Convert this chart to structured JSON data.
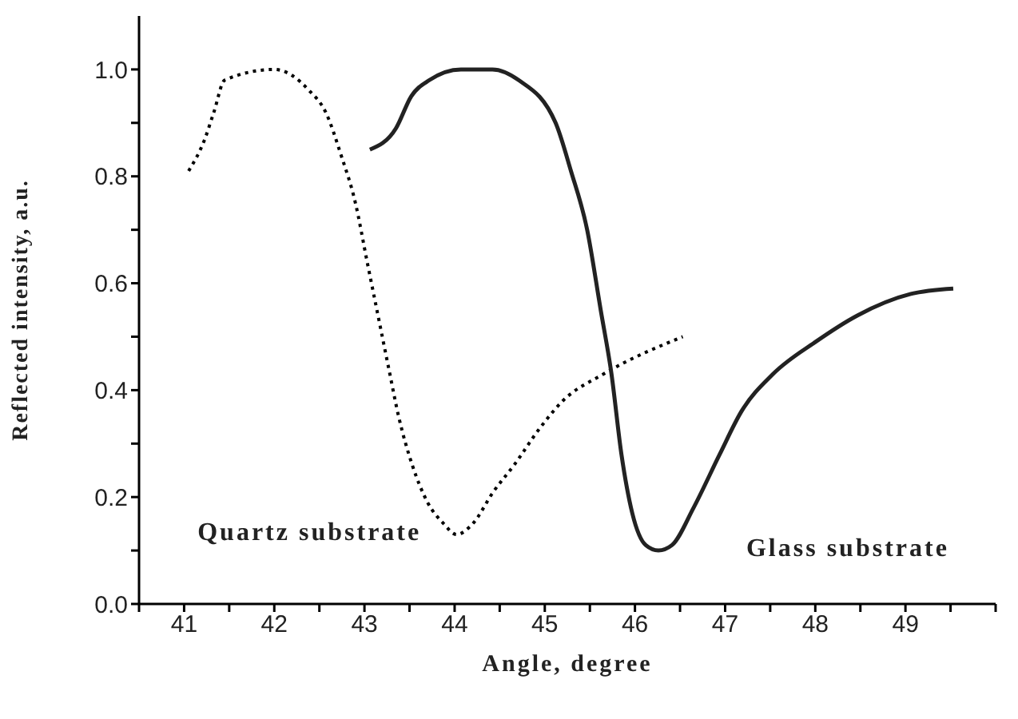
{
  "chart_data": {
    "type": "line",
    "xlabel": "Angle, degree",
    "ylabel": "Reflected intensity, a.u.",
    "xlim": [
      40.5,
      50
    ],
    "xticks": [
      {
        "value": 40.5,
        "label": null
      },
      41,
      {
        "value": 41.5,
        "label": null
      },
      42,
      {
        "value": 42.5,
        "label": null
      },
      43,
      {
        "value": 43.5,
        "label": null
      },
      44,
      {
        "value": 44.5,
        "label": null
      },
      45,
      {
        "value": 45.5,
        "label": null
      },
      46,
      {
        "value": 46.5,
        "label": null
      },
      47,
      {
        "value": 47.5,
        "label": null
      },
      48,
      {
        "value": 48.5,
        "label": null
      },
      49,
      {
        "value": 49.5,
        "label": null
      },
      {
        "value": 50,
        "label": null
      }
    ],
    "ylim": [
      0,
      1.1
    ],
    "yticks": [
      {
        "value": 0,
        "label": "0.0"
      },
      {
        "value": 0.1,
        "label": null
      },
      {
        "value": 0.2,
        "label": "0.2"
      },
      {
        "value": 0.3,
        "label": null
      },
      {
        "value": 0.4,
        "label": "0.4"
      },
      {
        "value": 0.5,
        "label": null
      },
      {
        "value": 0.6,
        "label": "0.6"
      },
      {
        "value": 0.7,
        "label": null
      },
      {
        "value": 0.8,
        "label": "0.8"
      },
      {
        "value": 0.9,
        "label": null
      },
      {
        "value": 1.0,
        "label": "1.0"
      }
    ],
    "grid": false,
    "legend": false,
    "marker": "none",
    "series": [
      {
        "name": "Quartz substrate",
        "color": "#000000",
        "line_style": "dotted",
        "x": [
          41.05,
          41.23,
          41.33,
          41.45,
          42.0,
          42.39,
          42.57,
          42.74,
          42.9,
          43.03,
          43.15,
          43.27,
          43.38,
          43.53,
          43.7,
          43.88,
          44.02,
          44.2,
          44.43,
          44.66,
          44.95,
          45.2,
          45.65,
          46.53
        ],
        "values": [
          0.81,
          0.87,
          0.92,
          0.98,
          1.0,
          0.96,
          0.92,
          0.84,
          0.75,
          0.64,
          0.54,
          0.44,
          0.35,
          0.26,
          0.19,
          0.15,
          0.13,
          0.15,
          0.21,
          0.26,
          0.33,
          0.38,
          0.43,
          0.5
        ]
      },
      {
        "name": "Glass substrate",
        "color": "#222222",
        "line_style": "solid",
        "x": [
          43.06,
          43.35,
          43.52,
          43.72,
          44.07,
          44.42,
          44.71,
          45.12,
          45.29,
          45.47,
          45.62,
          45.74,
          45.85,
          45.97,
          46.12,
          46.26,
          46.41,
          46.65,
          46.94,
          47.18,
          47.53,
          48.0,
          48.47,
          49.06,
          49.53
        ],
        "values": [
          0.85,
          0.89,
          0.95,
          0.98,
          1.0,
          1.0,
          0.98,
          0.9,
          0.81,
          0.7,
          0.55,
          0.43,
          0.28,
          0.17,
          0.11,
          0.1,
          0.11,
          0.18,
          0.28,
          0.36,
          0.43,
          0.49,
          0.54,
          0.58,
          0.59
        ]
      }
    ]
  }
}
